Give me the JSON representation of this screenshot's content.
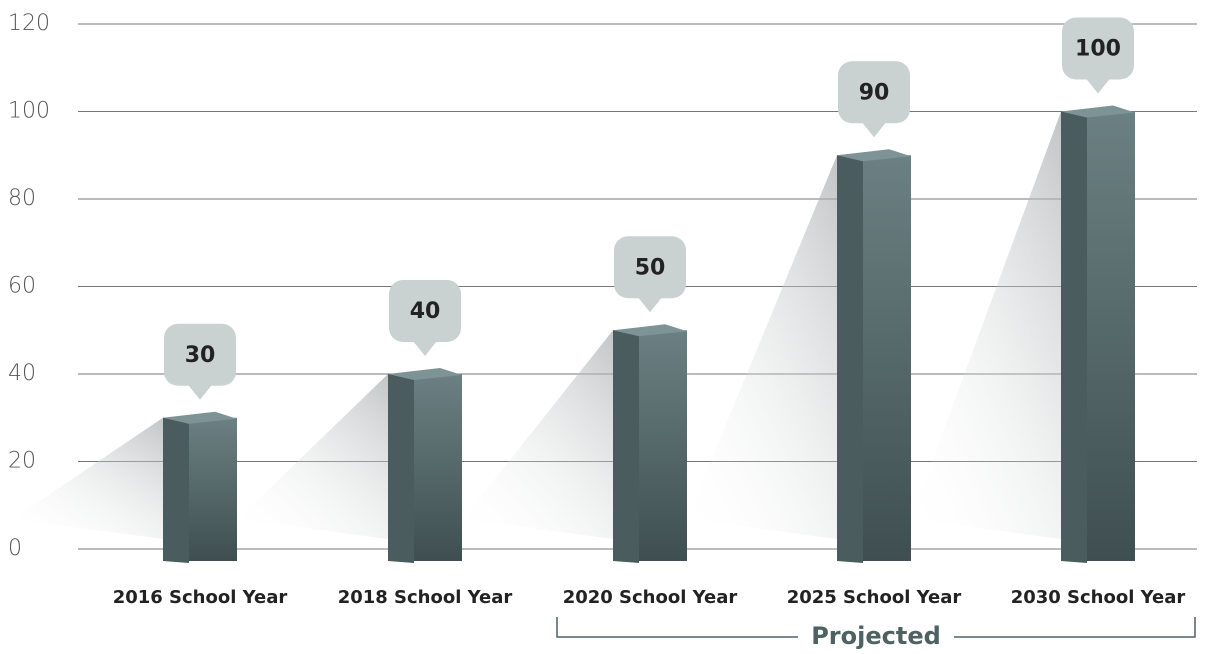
{
  "chart_data": {
    "type": "bar",
    "categories": [
      "2016 School Year",
      "2018 School Year",
      "2020 School Year",
      "2025 School Year",
      "2030 School Year"
    ],
    "values": [
      30,
      40,
      50,
      90,
      100
    ],
    "color": "#5b6f71",
    "ylim": [
      0,
      120
    ],
    "yticks": [
      0,
      20,
      40,
      60,
      80,
      100,
      120
    ],
    "grid": true,
    "annotation": "Projected"
  }
}
